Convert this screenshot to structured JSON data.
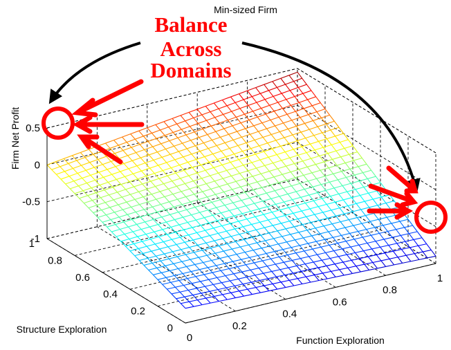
{
  "chart_data": {
    "type": "surface",
    "title": "Min-sized Firm",
    "xlabel": "Function Exploration",
    "ylabel": "Structure Exploration",
    "zlabel": "Firm Net Profit",
    "xlim": [
      0,
      1
    ],
    "ylim": [
      0,
      1
    ],
    "zlim": [
      -1,
      0.5
    ],
    "x_ticks": [
      "0",
      "0.2",
      "0.4",
      "0.6",
      "0.8",
      "1"
    ],
    "y_ticks": [
      "0",
      "0.2",
      "0.4",
      "0.6",
      "0.8",
      "1"
    ],
    "z_ticks": [
      "-1",
      "-0.5",
      "0",
      "0.5"
    ],
    "grid": true,
    "colormap": "jet",
    "corners": [
      {
        "x": 0,
        "y": 0,
        "z": -0.8
      },
      {
        "x": 1,
        "y": 0,
        "z": -0.9
      },
      {
        "x": 0,
        "y": 1,
        "z": 0.0
      },
      {
        "x": 1,
        "y": 1,
        "z": 0.45
      }
    ],
    "annotation": {
      "lines": [
        "Balance",
        "Across",
        "Domains"
      ],
      "color": "#ff0000"
    },
    "highlighted_points": [
      {
        "x": 0,
        "y": 1,
        "z": 0.0
      },
      {
        "x": 1,
        "y": 0,
        "z": -0.9
      }
    ]
  }
}
